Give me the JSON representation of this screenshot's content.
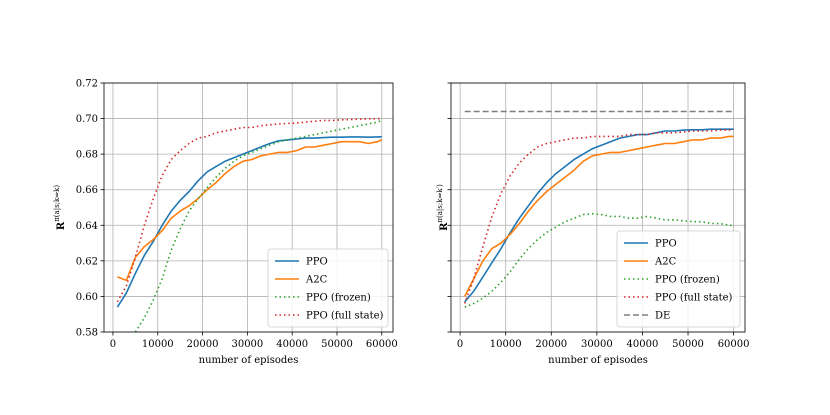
{
  "chart_data": [
    {
      "type": "line",
      "xlabel": "number of episodes",
      "ylabel": "R^{π(a|s;k⇒k)}",
      "ylabel_main": "R",
      "ylabel_sup": "π(a|s;k⇒k)",
      "xlim": [
        -2000,
        62500
      ],
      "ylim": [
        0.58,
        0.72
      ],
      "xticks": [
        0,
        10000,
        20000,
        30000,
        40000,
        50000,
        60000
      ],
      "yticks": [
        0.58,
        0.6,
        0.62,
        0.64,
        0.66,
        0.68,
        0.7,
        0.72
      ],
      "ytick_labels": [
        "0.58",
        "0.60",
        "0.62",
        "0.64",
        "0.66",
        "0.68",
        "0.70",
        "0.72"
      ],
      "grid": true,
      "legend_position": "lower-right",
      "series": [
        {
          "name": "PPO",
          "color": "#1f77b4",
          "style": "solid",
          "x": [
            1000,
            3000,
            5000,
            7000,
            9000,
            11000,
            13000,
            15000,
            17000,
            19000,
            21000,
            23000,
            25000,
            27000,
            29000,
            31000,
            33000,
            35000,
            37000,
            39000,
            41000,
            43000,
            45000,
            47000,
            49000,
            51000,
            53000,
            55000,
            57000,
            59000,
            60000
          ],
          "y": [
            0.594,
            0.602,
            0.613,
            0.623,
            0.631,
            0.64,
            0.648,
            0.654,
            0.659,
            0.665,
            0.67,
            0.673,
            0.676,
            0.678,
            0.68,
            0.682,
            0.684,
            0.686,
            0.6875,
            0.688,
            0.6885,
            0.689,
            0.689,
            0.6893,
            0.6895,
            0.6895,
            0.6897,
            0.6897,
            0.6895,
            0.6897,
            0.6898
          ]
        },
        {
          "name": "A2C",
          "color": "#ff7f0e",
          "style": "solid",
          "x": [
            1000,
            3000,
            5000,
            7000,
            9000,
            11000,
            13000,
            15000,
            17000,
            19000,
            21000,
            23000,
            25000,
            27000,
            29000,
            31000,
            33000,
            35000,
            37000,
            39000,
            41000,
            43000,
            45000,
            47000,
            49000,
            51000,
            53000,
            55000,
            57000,
            59000,
            60000
          ],
          "y": [
            0.611,
            0.609,
            0.622,
            0.628,
            0.632,
            0.637,
            0.644,
            0.648,
            0.651,
            0.655,
            0.66,
            0.664,
            0.669,
            0.673,
            0.676,
            0.677,
            0.679,
            0.68,
            0.681,
            0.681,
            0.682,
            0.684,
            0.684,
            0.685,
            0.686,
            0.687,
            0.687,
            0.687,
            0.686,
            0.687,
            0.688
          ]
        },
        {
          "name": "PPO (frozen)",
          "color": "#2ca02c",
          "style": "dotted",
          "x": [
            5000,
            7000,
            9000,
            11000,
            13000,
            15000,
            17000,
            19000,
            21000,
            23000,
            25000,
            27000,
            29000,
            31000,
            33000,
            35000,
            37000,
            39000,
            41000,
            43000,
            45000,
            47000,
            49000,
            51000,
            53000,
            55000,
            57000,
            59000,
            60000
          ],
          "y": [
            0.58,
            0.588,
            0.598,
            0.61,
            0.626,
            0.638,
            0.648,
            0.655,
            0.661,
            0.667,
            0.672,
            0.676,
            0.679,
            0.681,
            0.683,
            0.685,
            0.687,
            0.688,
            0.689,
            0.69,
            0.691,
            0.692,
            0.693,
            0.694,
            0.695,
            0.696,
            0.697,
            0.698,
            0.699
          ]
        },
        {
          "name": "PPO (full state)",
          "color": "#d62728",
          "style": "dotted",
          "x": [
            1000,
            3000,
            5000,
            7000,
            9000,
            11000,
            13000,
            15000,
            17000,
            19000,
            21000,
            23000,
            25000,
            27000,
            29000,
            31000,
            33000,
            35000,
            37000,
            39000,
            41000,
            43000,
            45000,
            47000,
            49000,
            51000,
            53000,
            55000,
            57000,
            59000,
            60000
          ],
          "y": [
            0.597,
            0.606,
            0.622,
            0.64,
            0.655,
            0.668,
            0.677,
            0.682,
            0.686,
            0.689,
            0.69,
            0.692,
            0.693,
            0.694,
            0.695,
            0.695,
            0.696,
            0.6965,
            0.697,
            0.6973,
            0.6975,
            0.698,
            0.6985,
            0.699,
            0.699,
            0.6993,
            0.6995,
            0.6997,
            0.6998,
            0.6999,
            0.7
          ]
        }
      ]
    },
    {
      "type": "line",
      "xlabel": "number of episodes",
      "ylabel": "R^{π(a|s;k⇒k′)}",
      "ylabel_main": "R",
      "ylabel_sup": "π(a|s;k⇒k′)",
      "xlim": [
        -2000,
        62500
      ],
      "ylim": [
        0.58,
        0.72
      ],
      "xticks": [
        0,
        10000,
        20000,
        30000,
        40000,
        50000,
        60000
      ],
      "yticks": [
        0.58,
        0.6,
        0.62,
        0.64,
        0.66,
        0.68,
        0.7,
        0.72
      ],
      "ytick_labels": [
        "",
        "",
        "",
        "",
        "",
        "",
        "",
        ""
      ],
      "grid": true,
      "legend_position": "lower-right",
      "series": [
        {
          "name": "PPO",
          "color": "#1f77b4",
          "style": "solid",
          "x": [
            1000,
            3000,
            5000,
            7000,
            9000,
            11000,
            13000,
            15000,
            17000,
            19000,
            21000,
            23000,
            25000,
            27000,
            29000,
            31000,
            33000,
            35000,
            37000,
            39000,
            41000,
            43000,
            45000,
            47000,
            49000,
            51000,
            53000,
            55000,
            57000,
            59000,
            60000
          ],
          "y": [
            0.597,
            0.603,
            0.611,
            0.619,
            0.627,
            0.636,
            0.644,
            0.651,
            0.658,
            0.664,
            0.669,
            0.673,
            0.677,
            0.68,
            0.683,
            0.685,
            0.687,
            0.689,
            0.69,
            0.691,
            0.691,
            0.692,
            0.693,
            0.693,
            0.6935,
            0.6937,
            0.6937,
            0.694,
            0.694,
            0.694,
            0.694
          ]
        },
        {
          "name": "A2C",
          "color": "#ff7f0e",
          "style": "solid",
          "x": [
            1000,
            3000,
            5000,
            7000,
            9000,
            11000,
            13000,
            15000,
            17000,
            19000,
            21000,
            23000,
            25000,
            27000,
            29000,
            31000,
            33000,
            35000,
            37000,
            39000,
            41000,
            43000,
            45000,
            47000,
            49000,
            51000,
            53000,
            55000,
            57000,
            59000,
            60000
          ],
          "y": [
            0.6,
            0.61,
            0.62,
            0.627,
            0.63,
            0.635,
            0.641,
            0.648,
            0.654,
            0.659,
            0.663,
            0.667,
            0.671,
            0.676,
            0.679,
            0.68,
            0.681,
            0.681,
            0.682,
            0.683,
            0.684,
            0.685,
            0.686,
            0.686,
            0.687,
            0.688,
            0.688,
            0.689,
            0.689,
            0.69,
            0.69
          ]
        },
        {
          "name": "PPO (frozen)",
          "color": "#2ca02c",
          "style": "dotted",
          "x": [
            1000,
            3000,
            5000,
            7000,
            9000,
            11000,
            13000,
            15000,
            17000,
            19000,
            21000,
            23000,
            25000,
            27000,
            29000,
            31000,
            33000,
            35000,
            37000,
            39000,
            41000,
            43000,
            45000,
            47000,
            49000,
            51000,
            53000,
            55000,
            57000,
            59000,
            60000
          ],
          "y": [
            0.594,
            0.596,
            0.599,
            0.603,
            0.608,
            0.614,
            0.621,
            0.627,
            0.632,
            0.636,
            0.639,
            0.642,
            0.644,
            0.646,
            0.6465,
            0.646,
            0.645,
            0.645,
            0.644,
            0.644,
            0.645,
            0.644,
            0.643,
            0.643,
            0.6425,
            0.642,
            0.642,
            0.641,
            0.641,
            0.64,
            0.64
          ]
        },
        {
          "name": "PPO (full state)",
          "color": "#d62728",
          "style": "dotted",
          "x": [
            1000,
            3000,
            5000,
            7000,
            9000,
            11000,
            13000,
            15000,
            17000,
            19000,
            21000,
            23000,
            25000,
            27000,
            29000,
            31000,
            33000,
            35000,
            37000,
            39000,
            41000,
            43000,
            45000,
            47000,
            49000,
            51000,
            53000,
            55000,
            57000,
            59000,
            60000
          ],
          "y": [
            0.596,
            0.61,
            0.628,
            0.645,
            0.658,
            0.668,
            0.675,
            0.68,
            0.684,
            0.686,
            0.687,
            0.688,
            0.689,
            0.689,
            0.69,
            0.69,
            0.69,
            0.69,
            0.691,
            0.691,
            0.691,
            0.692,
            0.692,
            0.692,
            0.6925,
            0.693,
            0.693,
            0.693,
            0.6935,
            0.6935,
            0.694
          ]
        },
        {
          "name": "DE",
          "color": "#7f7f7f",
          "style": "dashed",
          "x": [
            1000,
            60000
          ],
          "y": [
            0.704,
            0.704
          ]
        }
      ]
    }
  ]
}
